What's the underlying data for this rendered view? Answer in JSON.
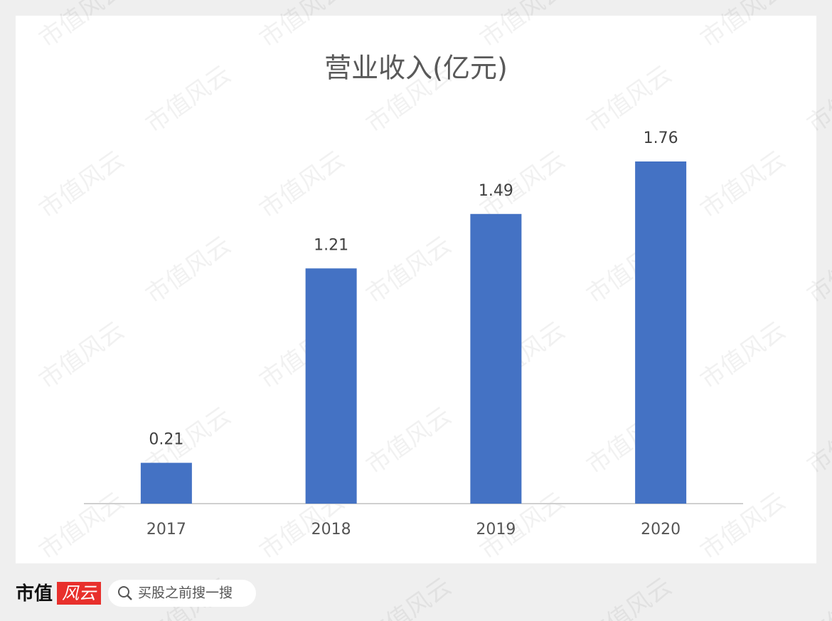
{
  "chart_data": {
    "type": "bar",
    "title": "营业收入(亿元)",
    "categories": [
      "2017",
      "2018",
      "2019",
      "2020"
    ],
    "values": [
      0.21,
      1.21,
      1.49,
      1.76
    ],
    "color": "#4472c4"
  },
  "watermark": "市值风云",
  "footer": {
    "brand": "市值",
    "brand_mark": "风云",
    "search_placeholder": "买股之前搜一搜"
  }
}
